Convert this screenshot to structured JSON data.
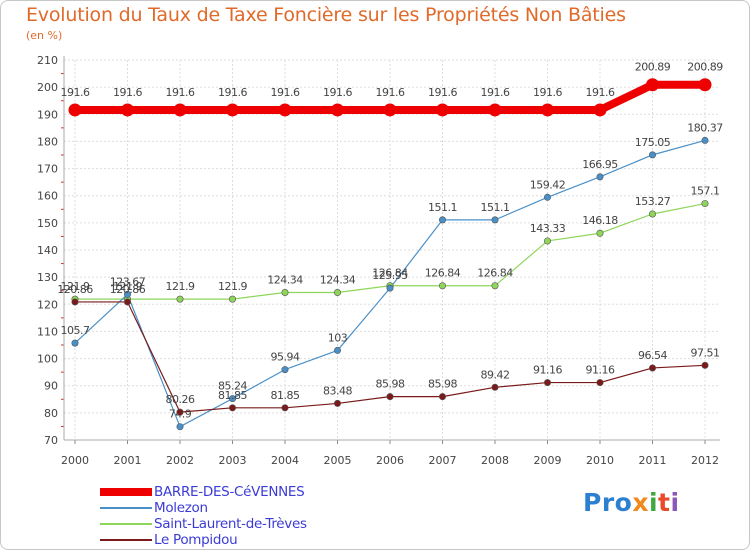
{
  "chart_data": {
    "type": "line",
    "title": "Evolution du Taux de Taxe Foncière sur les Propriétés Non Bâties",
    "subtitle": "(en %)",
    "xlabel": "",
    "ylabel": "(en %)",
    "x": [
      "2000",
      "2001",
      "2002",
      "2003",
      "2004",
      "2005",
      "2006",
      "2007",
      "2008",
      "2009",
      "2010",
      "2011",
      "2012"
    ],
    "ylim": [
      70,
      210
    ],
    "yticks": [
      "70",
      "80",
      "90",
      "100",
      "110",
      "120",
      "130",
      "140",
      "150",
      "160",
      "170",
      "180",
      "190",
      "200",
      "210"
    ],
    "grid": true,
    "legend_position": "bottom-left",
    "series": [
      {
        "name": "BARRE-DES-CéVENNES",
        "color": "#ee0000",
        "values": [
          191.6,
          191.6,
          191.6,
          191.6,
          191.6,
          191.6,
          191.6,
          191.6,
          191.6,
          191.6,
          191.6,
          200.89,
          200.89
        ],
        "labels": [
          "191.6",
          "191.6",
          "191.6",
          "191.6",
          "191.6",
          "191.6",
          "191.6",
          "191.6",
          "191.6",
          "191.6",
          "191.6",
          "200.89",
          "200.89"
        ]
      },
      {
        "name": "Molezon",
        "color": "#4a90c8",
        "values": [
          105.7,
          123.67,
          74.9,
          85.24,
          95.94,
          103,
          125.95,
          151.1,
          151.1,
          159.42,
          166.95,
          175.05,
          180.37
        ],
        "labels": [
          "105.7",
          "123.67",
          "74.9",
          "85.24",
          "95.94",
          "103",
          "125.95",
          "151.1",
          "151.1",
          "159.42",
          "166.95",
          "175.05",
          "180.37"
        ]
      },
      {
        "name": "Saint-Laurent-de-Trèves",
        "color": "#8ed65a",
        "values": [
          121.9,
          121.9,
          121.9,
          121.9,
          124.34,
          124.34,
          126.84,
          126.84,
          126.84,
          143.33,
          146.18,
          153.27,
          157.1
        ],
        "labels": [
          "121.9",
          "121.9",
          "121.9",
          "121.9",
          "124.34",
          "124.34",
          "126.84",
          "126.84",
          "126.84",
          "143.33",
          "146.18",
          "153.27",
          "157.1"
        ]
      },
      {
        "name": "Le Pompidou",
        "color": "#7a1a1a",
        "values": [
          120.86,
          120.86,
          80.26,
          81.85,
          81.85,
          83.48,
          85.98,
          85.98,
          89.42,
          91.16,
          91.16,
          96.54,
          97.51
        ],
        "labels": [
          "120.86",
          "120.86",
          "80.26",
          "81.85",
          "81.85",
          "83.48",
          "85.98",
          "85.98",
          "89.42",
          "91.16",
          "91.16",
          "96.54",
          "97.51"
        ]
      }
    ]
  },
  "logo": {
    "parts": [
      "Pro",
      "x",
      "i",
      "t",
      "i"
    ]
  }
}
